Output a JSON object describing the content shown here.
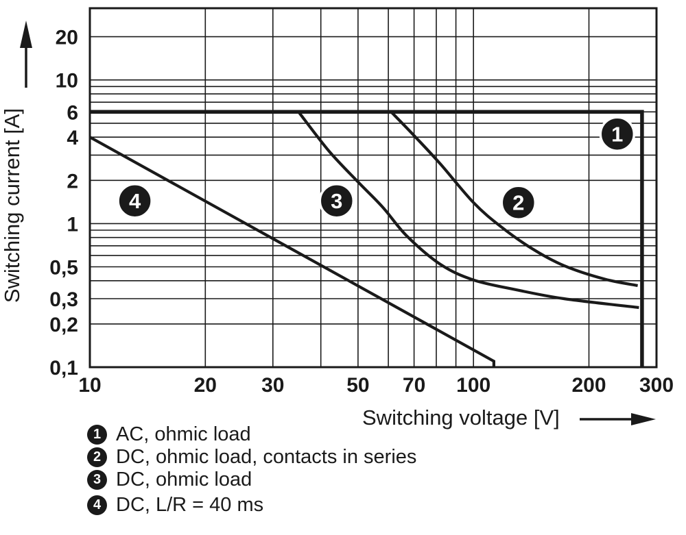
{
  "chart_data": {
    "type": "line",
    "title": "",
    "description": "Relay contact load limit curves: switching current vs switching voltage, log-log scales",
    "ink_color": "#1a1a1a",
    "background_color": "#ffffff",
    "grid": "on",
    "x_axis": {
      "label": "Switching voltage [V]",
      "scale": "log",
      "range": [
        10,
        300
      ],
      "ticks": [
        {
          "v": 10,
          "label": "10"
        },
        {
          "v": 20,
          "label": "20"
        },
        {
          "v": 30,
          "label": "30"
        },
        {
          "v": 50,
          "label": "50"
        },
        {
          "v": 70,
          "label": "70"
        },
        {
          "v": 100,
          "label": "100"
        },
        {
          "v": 200,
          "label": "200"
        },
        {
          "v": 300,
          "label": "300"
        }
      ],
      "gridlines": [
        20,
        30,
        40,
        50,
        60,
        70,
        80,
        90,
        100,
        200
      ]
    },
    "y_axis": {
      "label": "Switching current [A]",
      "scale": "log",
      "range": [
        0.1,
        31.6
      ],
      "ticks": [
        {
          "v": 20,
          "label": "20"
        },
        {
          "v": 10,
          "label": "10"
        },
        {
          "v": 6,
          "label": "6"
        },
        {
          "v": 4,
          "label": "4"
        },
        {
          "v": 2,
          "label": "2"
        },
        {
          "v": 1,
          "label": "1"
        },
        {
          "v": 0.5,
          "label": "0,5"
        },
        {
          "v": 0.3,
          "label": "0,3"
        },
        {
          "v": 0.2,
          "label": "0,2"
        },
        {
          "v": 0.1,
          "label": "0,1"
        }
      ],
      "gridlines": [
        0.2,
        0.3,
        0.4,
        0.5,
        0.6,
        0.7,
        0.8,
        0.9,
        1,
        2,
        3,
        4,
        5,
        6,
        7,
        8,
        9,
        10,
        20
      ]
    },
    "series": [
      {
        "id": "1",
        "name": "AC, ohmic load",
        "smooth": false,
        "width": 5.5,
        "points": [
          [
            10,
            6
          ],
          [
            275,
            6
          ],
          [
            275,
            0.1
          ]
        ]
      },
      {
        "id": "2",
        "name": "DC, ohmic load, contacts in series",
        "smooth": true,
        "width": 4.2,
        "points": [
          [
            61,
            6
          ],
          [
            70,
            4.1
          ],
          [
            82,
            2.6
          ],
          [
            100,
            1.4
          ],
          [
            118,
            0.95
          ],
          [
            142,
            0.67
          ],
          [
            172,
            0.51
          ],
          [
            220,
            0.41
          ],
          [
            268,
            0.37
          ]
        ]
      },
      {
        "id": "3",
        "name": "DC, ohmic load",
        "smooth": true,
        "width": 4.2,
        "points": [
          [
            35,
            6
          ],
          [
            42,
            3.2
          ],
          [
            50,
            1.95
          ],
          [
            58,
            1.3
          ],
          [
            67,
            0.82
          ],
          [
            82,
            0.52
          ],
          [
            100,
            0.405
          ],
          [
            130,
            0.345
          ],
          [
            172,
            0.3
          ],
          [
            270,
            0.26
          ]
        ]
      },
      {
        "id": "4",
        "name": "DC, L/R = 40 ms",
        "smooth": false,
        "width": 4.2,
        "points": [
          [
            10,
            4
          ],
          [
            113,
            0.11
          ],
          [
            113,
            0.1
          ]
        ]
      }
    ],
    "curve_markers": [
      {
        "label": "1",
        "v": 237,
        "a": 4.2
      },
      {
        "label": "2",
        "v": 131,
        "a": 1.4
      },
      {
        "label": "3",
        "v": 44,
        "a": 1.44
      },
      {
        "label": "4",
        "v": 13.1,
        "a": 1.44
      }
    ],
    "legend": [
      {
        "symbol": "1",
        "text": "AC, ohmic load"
      },
      {
        "symbol": "2",
        "text": "DC, ohmic load, contacts in series"
      },
      {
        "symbol": "3",
        "text": "DC, ohmic load"
      },
      {
        "symbol": "4",
        "text": "DC, L/R = 40 ms"
      }
    ]
  }
}
